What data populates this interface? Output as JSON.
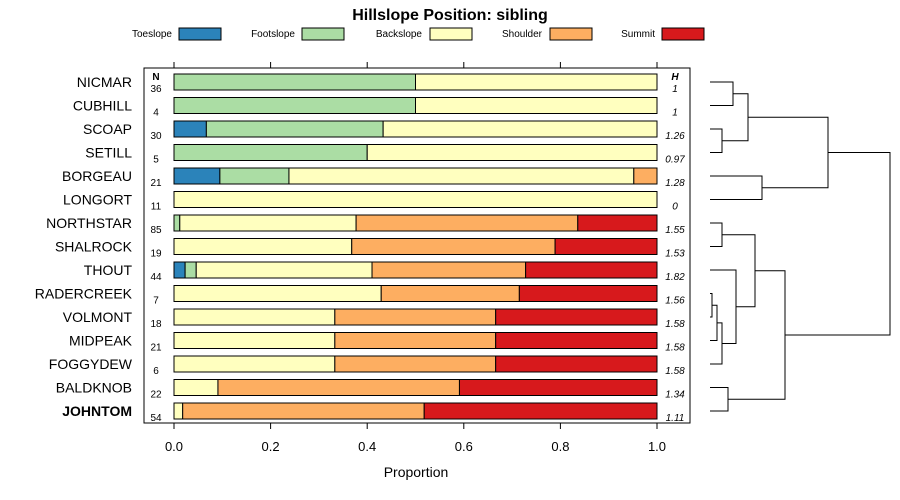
{
  "chart_data": {
    "type": "bar",
    "orientation": "horizontal",
    "stacked": true,
    "title": "Hillslope Position: sibling",
    "xlabel": "Proportion",
    "xlim": [
      0,
      1
    ],
    "xticks": [
      "0.0",
      "0.2",
      "0.4",
      "0.6",
      "0.8",
      "1.0"
    ],
    "legend": {
      "position": "top",
      "items": [
        {
          "name": "Toeslope",
          "color": "#2b83ba"
        },
        {
          "name": "Footslope",
          "color": "#abdda4"
        },
        {
          "name": "Backslope",
          "color": "#ffffbf"
        },
        {
          "name": "Shoulder",
          "color": "#fdae61"
        },
        {
          "name": "Summit",
          "color": "#d7191c"
        }
      ]
    },
    "n_header": "N",
    "h_header": "H",
    "rows": [
      {
        "name": "NICMAR",
        "n": "36",
        "h": "1",
        "bold": false,
        "values": [
          0,
          0.5,
          0.5,
          0,
          0
        ]
      },
      {
        "name": "CUBHILL",
        "n": "4",
        "h": "1",
        "bold": false,
        "values": [
          0,
          0.5,
          0.5,
          0,
          0
        ]
      },
      {
        "name": "SCOAP",
        "n": "30",
        "h": "1.26",
        "bold": false,
        "values": [
          0.067,
          0.366,
          0.567,
          0,
          0
        ]
      },
      {
        "name": "SETILL",
        "n": "5",
        "h": "0.97",
        "bold": false,
        "values": [
          0,
          0.4,
          0.6,
          0,
          0
        ]
      },
      {
        "name": "BORGEAU",
        "n": "21",
        "h": "1.28",
        "bold": false,
        "values": [
          0.095,
          0.143,
          0.714,
          0.048,
          0
        ]
      },
      {
        "name": "LONGORT",
        "n": "11",
        "h": "0",
        "bold": false,
        "values": [
          0,
          0,
          1,
          0,
          0
        ]
      },
      {
        "name": "NORTHSTAR",
        "n": "85",
        "h": "1.55",
        "bold": false,
        "values": [
          0,
          0.012,
          0.365,
          0.459,
          0.164
        ]
      },
      {
        "name": "SHALROCK",
        "n": "19",
        "h": "1.53",
        "bold": false,
        "values": [
          0,
          0,
          0.368,
          0.421,
          0.211
        ]
      },
      {
        "name": "THOUT",
        "n": "44",
        "h": "1.82",
        "bold": false,
        "values": [
          0.023,
          0.023,
          0.364,
          0.318,
          0.272
        ]
      },
      {
        "name": "RADERCREEK",
        "n": "7",
        "h": "1.56",
        "bold": false,
        "values": [
          0,
          0,
          0.429,
          0.286,
          0.285
        ]
      },
      {
        "name": "VOLMONT",
        "n": "18",
        "h": "1.58",
        "bold": false,
        "values": [
          0,
          0,
          0.333,
          0.333,
          0.334
        ]
      },
      {
        "name": "MIDPEAK",
        "n": "21",
        "h": "1.58",
        "bold": false,
        "values": [
          0,
          0,
          0.333,
          0.333,
          0.334
        ]
      },
      {
        "name": "FOGGYDEW",
        "n": "6",
        "h": "1.58",
        "bold": false,
        "values": [
          0,
          0,
          0.333,
          0.333,
          0.334
        ]
      },
      {
        "name": "BALDKNOB",
        "n": "22",
        "h": "1.34",
        "bold": false,
        "values": [
          0,
          0,
          0.091,
          0.5,
          0.409
        ]
      },
      {
        "name": "JOHNTOM",
        "n": "54",
        "h": "1.11",
        "bold": true,
        "values": [
          0,
          0,
          0.018,
          0.5,
          0.482
        ]
      }
    ]
  }
}
